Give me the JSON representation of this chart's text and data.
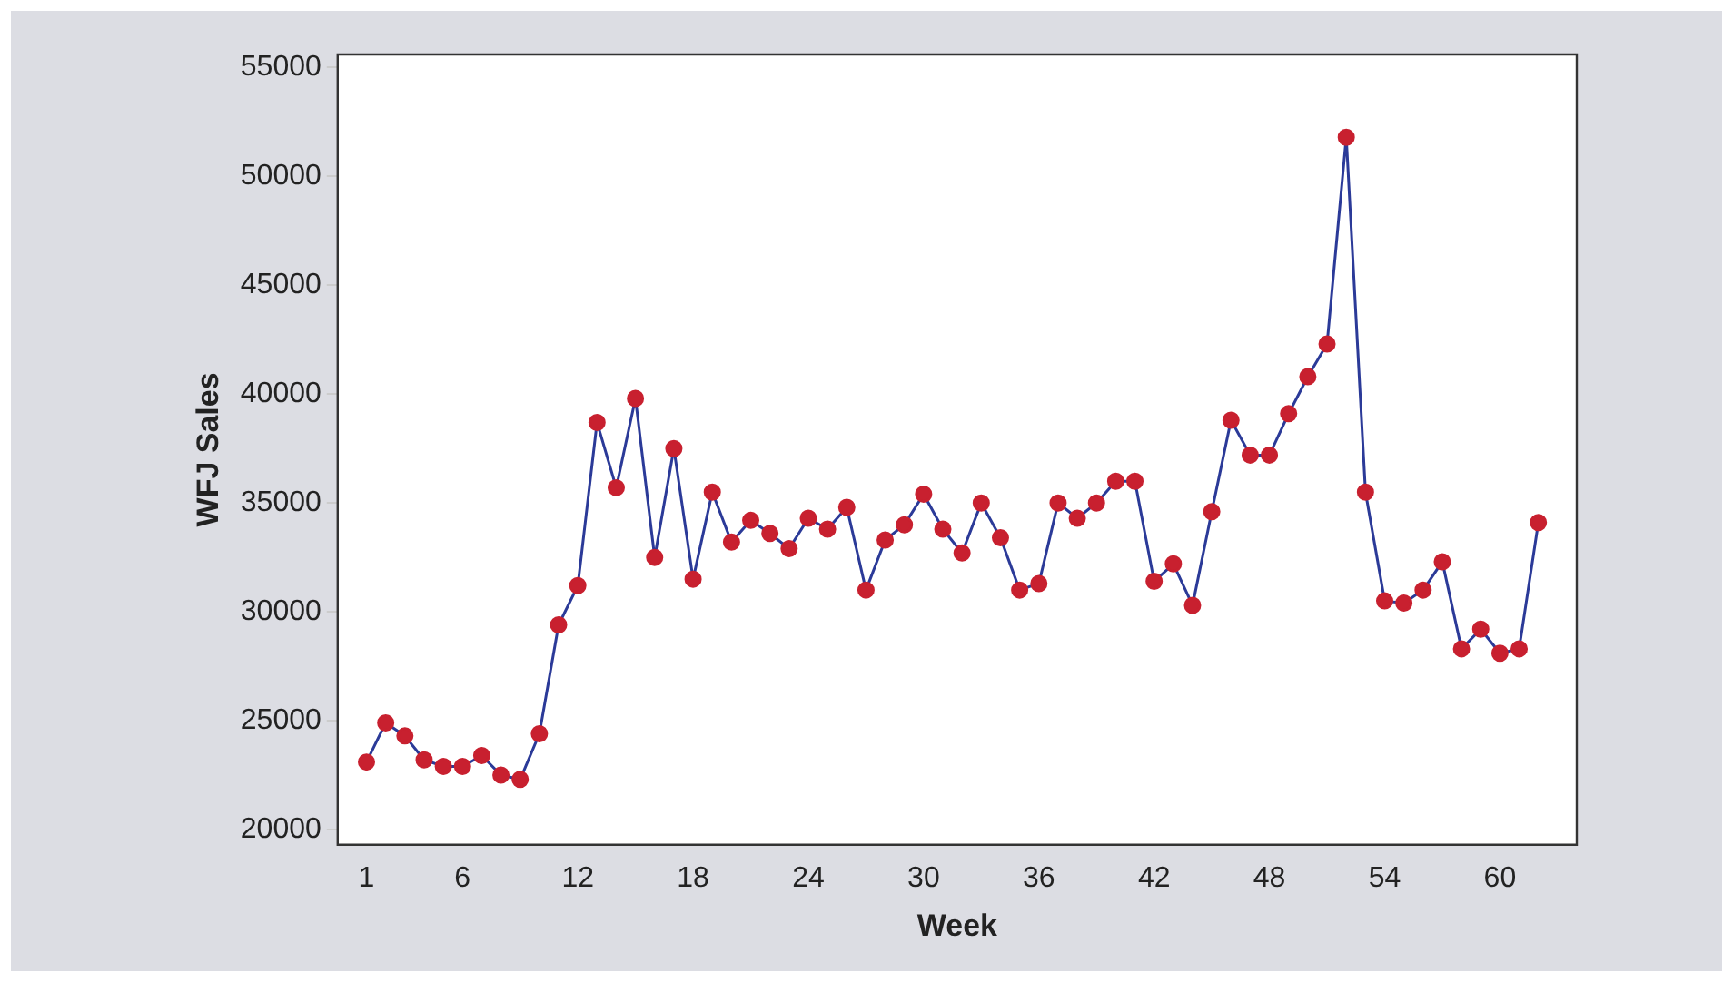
{
  "chart_data": {
    "type": "line",
    "xlabel": "Week",
    "ylabel": "WFJ Sales",
    "x": [
      1,
      2,
      3,
      4,
      5,
      6,
      7,
      8,
      9,
      10,
      11,
      12,
      13,
      14,
      15,
      16,
      17,
      18,
      19,
      20,
      21,
      22,
      23,
      24,
      25,
      26,
      27,
      28,
      29,
      30,
      31,
      32,
      33,
      34,
      35,
      36,
      37,
      38,
      39,
      40,
      41,
      42,
      43,
      44,
      45,
      46,
      47,
      48,
      49,
      50,
      51,
      52,
      53,
      54,
      55,
      56,
      57,
      58,
      59,
      60,
      61,
      62
    ],
    "series": [
      {
        "color": "#2b3a98",
        "colors": [
          "#c8202f",
          "#c8202f",
          "#c8202f",
          "#c8202f",
          "#c8202f",
          "#c8202f",
          "#c8202f",
          "#c8202f",
          "#c8202f",
          "#c8202f",
          "#c8202f",
          "#c8202f",
          "#c8202f",
          "#c8202f",
          "#c8202f",
          "#c8202f",
          "#c8202f",
          "#c8202f",
          "#c8202f",
          "#c8202f",
          "#c8202f",
          "#c8202f",
          "#c8202f",
          "#c8202f",
          "#c8202f",
          "#c8202f",
          "#c8202f",
          "#c8202f",
          "#c8202f",
          "#c8202f",
          "#c8202f",
          "#c8202f",
          "#c8202f",
          "#c8202f",
          "#c8202f",
          "#c8202f",
          "#c8202f",
          "#c8202f",
          "#c8202f",
          "#c8202f",
          "#c8202f",
          "#c8202f",
          "#c8202f",
          "#c8202f",
          "#c8202f",
          "#c8202f",
          "#c8202f",
          "#c8202f",
          "#c8202f",
          "#c8202f",
          "#c8202f",
          "#c8202f",
          "#c8202f",
          "#c8202f",
          "#c8202f",
          "#c8202f",
          "#c8202f",
          "#c8202f",
          "#c8202f",
          "#c8202f",
          "#c8202f",
          "#c8202f"
        ],
        "values": [
          23100,
          24900,
          24300,
          23200,
          22900,
          22900,
          23400,
          22500,
          22300,
          24400,
          29400,
          31200,
          38700,
          35700,
          39800,
          32500,
          37500,
          31500,
          35500,
          33200,
          34200,
          33600,
          32900,
          34300,
          33800,
          34800,
          31000,
          33300,
          34000,
          35400,
          33800,
          32700,
          35000,
          33400,
          31000,
          31300,
          35000,
          34300,
          35000,
          36000,
          36000,
          31400,
          32200,
          30300,
          34600,
          38800,
          37200,
          37200,
          39100,
          40800,
          42300,
          51800,
          35500,
          30500,
          30400,
          31000,
          32300,
          28300,
          29200,
          28100,
          28300,
          34100
        ]
      }
    ],
    "xlim": [
      -0.5,
      64
    ],
    "xticks": [
      1,
      6,
      12,
      18,
      24,
      30,
      36,
      42,
      48,
      54,
      60
    ],
    "ylim": [
      19300,
      55600
    ],
    "yticks": [
      20000,
      25000,
      30000,
      35000,
      40000,
      45000,
      50000,
      55000
    ],
    "grid": false,
    "legend": false,
    "marker": "circle",
    "line_style": "solid"
  }
}
